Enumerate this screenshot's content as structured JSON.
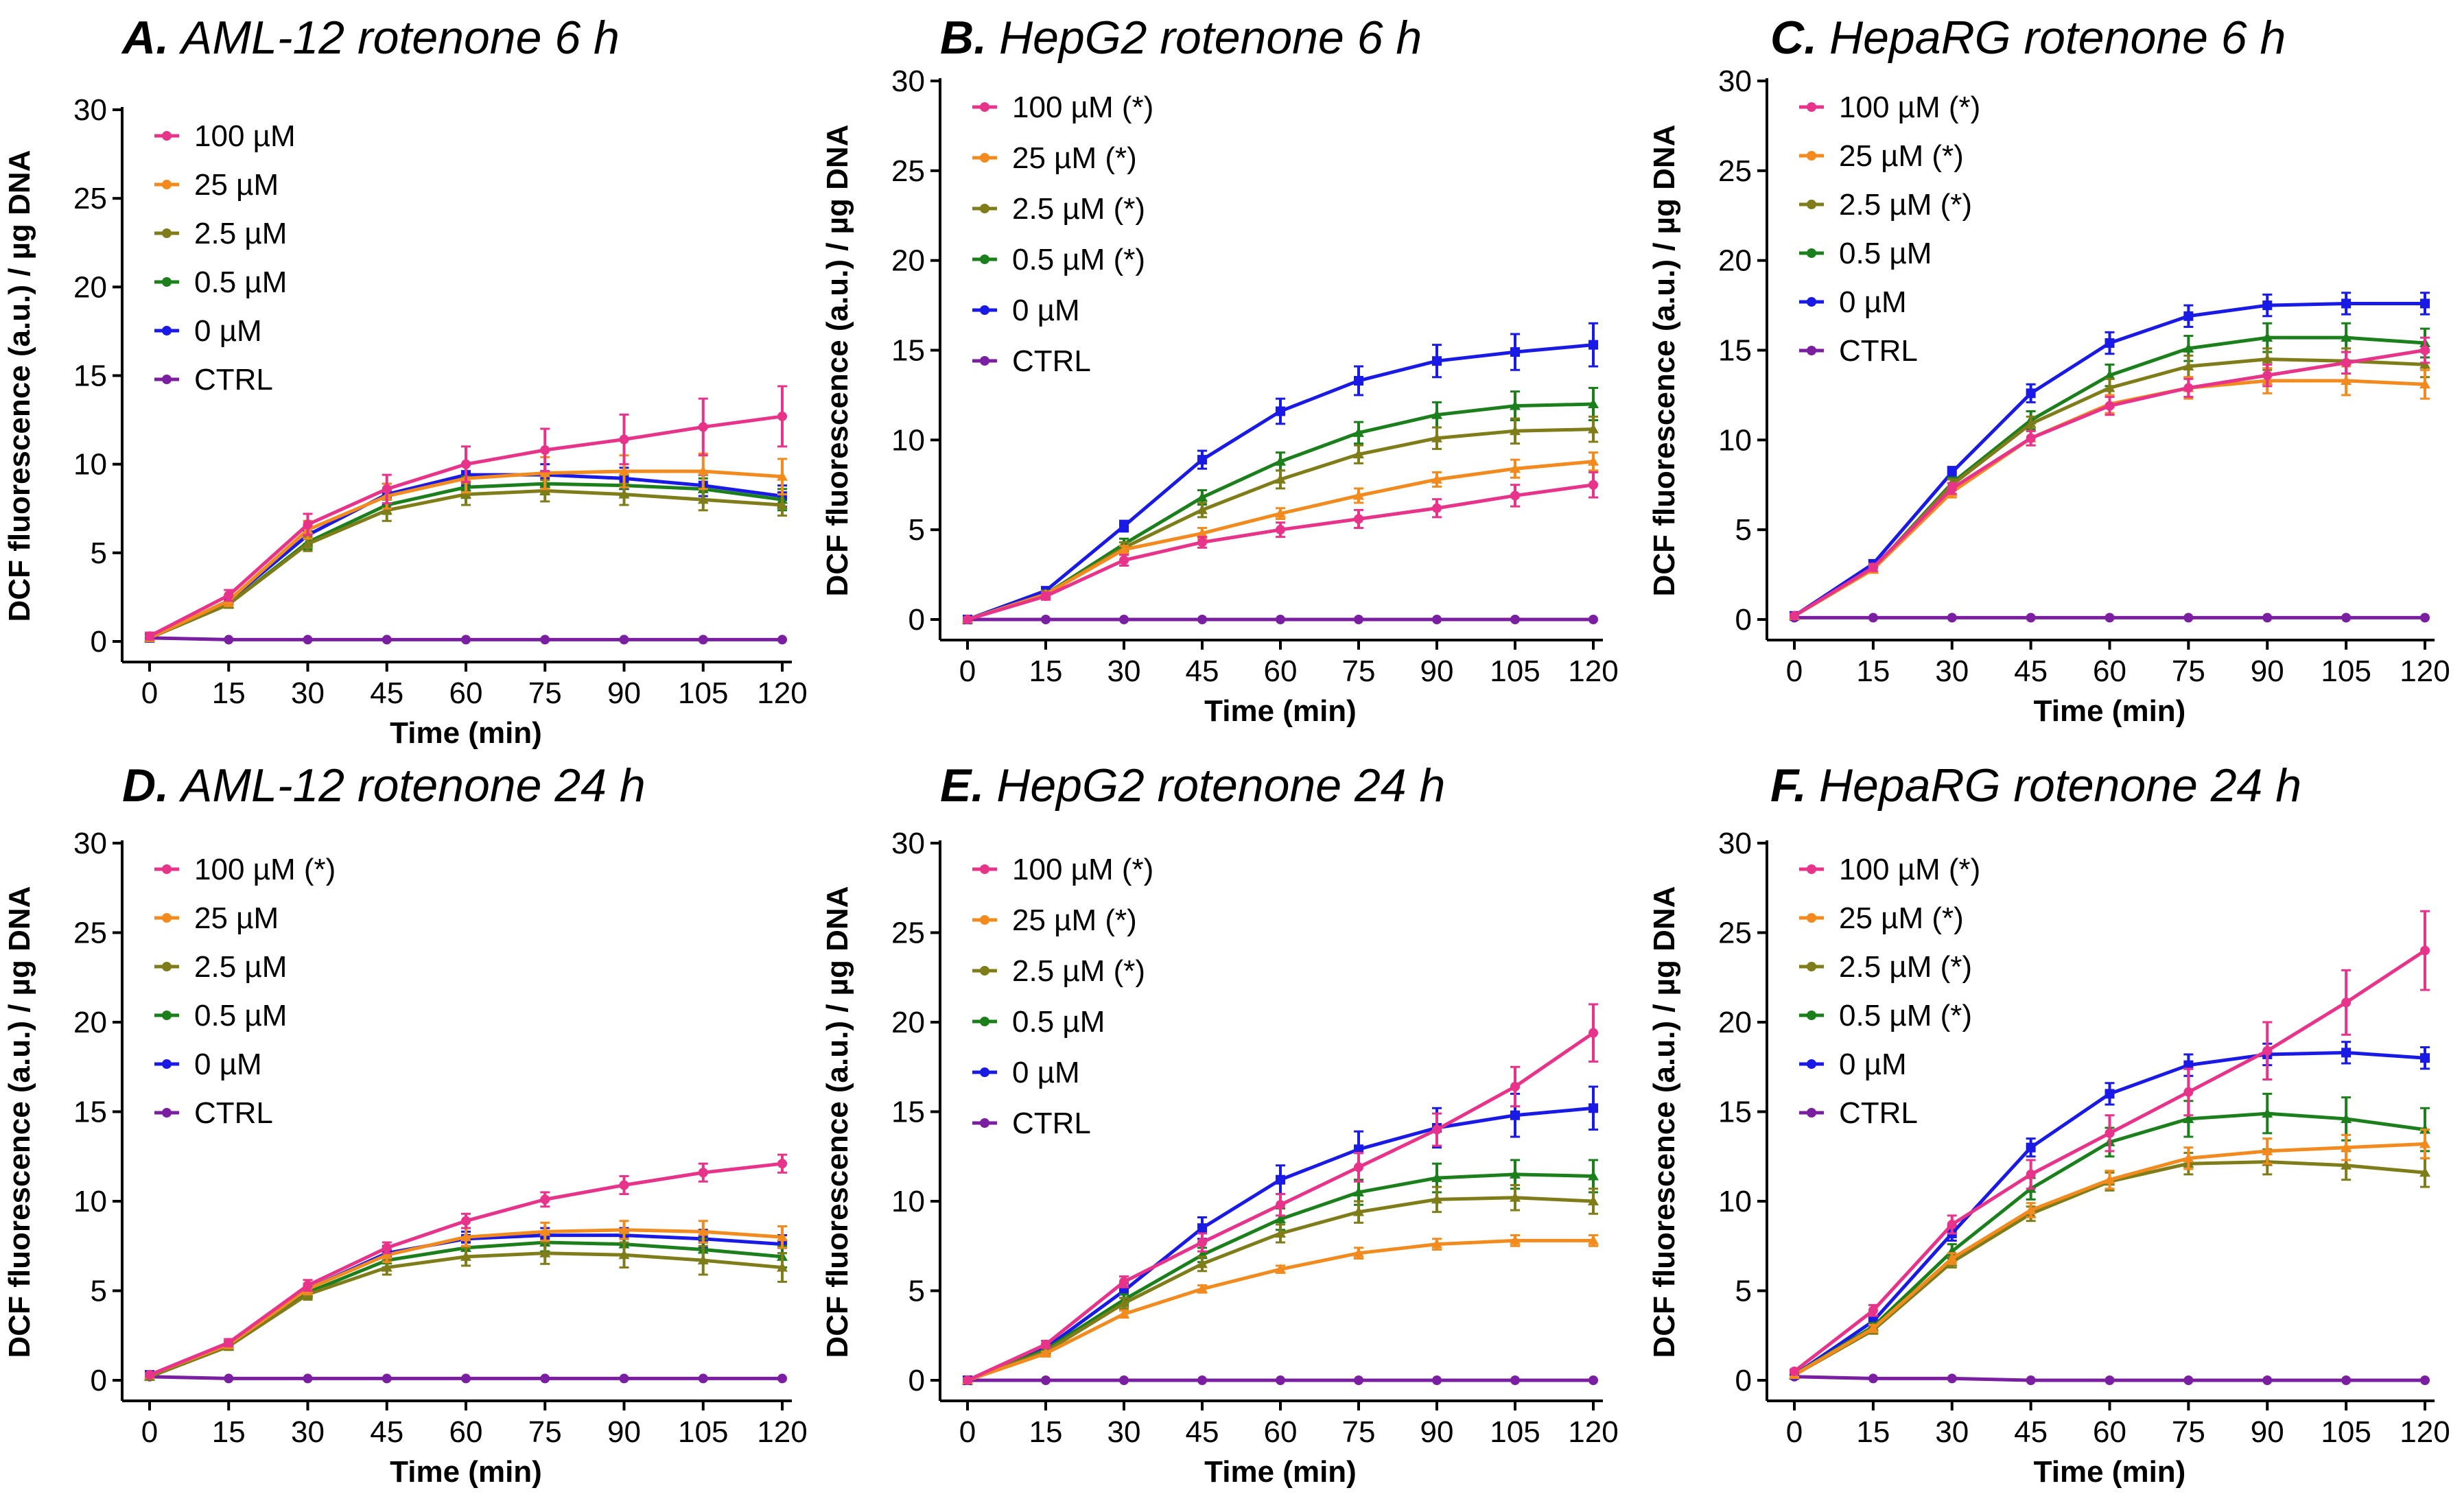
{
  "figure": {
    "panel_count": 6
  },
  "chart_data": [
    {
      "type": "line",
      "panel_letter": "A.",
      "title": "AML-12 rotenone 6 h",
      "xlabel": "Time (min)",
      "ylabel": "DCF fluorescence (a.u.) / µg DNA",
      "x": [
        0,
        15,
        30,
        45,
        60,
        75,
        90,
        105,
        120
      ],
      "xlim": [
        0,
        120
      ],
      "ylim": [
        0,
        30
      ],
      "yticks": [
        0,
        5,
        10,
        15,
        20,
        25,
        30
      ],
      "legend": "top-left",
      "series": [
        {
          "name": "100 µM",
          "color": "#e8338a",
          "values": [
            0.3,
            2.6,
            6.6,
            8.6,
            10.0,
            10.8,
            11.4,
            12.1,
            12.7
          ],
          "errors": [
            0.2,
            0.3,
            0.6,
            0.8,
            1.0,
            1.2,
            1.4,
            1.6,
            1.7
          ]
        },
        {
          "name": "25 µM",
          "color": "#f28a1e",
          "values": [
            0.2,
            2.3,
            6.3,
            8.2,
            9.2,
            9.5,
            9.6,
            9.6,
            9.3
          ],
          "errors": [
            0.1,
            0.3,
            0.5,
            0.7,
            0.8,
            0.9,
            0.9,
            1.0,
            1.0
          ]
        },
        {
          "name": "2.5 µM",
          "color": "#7f7d1a",
          "values": [
            0.2,
            2.1,
            5.5,
            7.4,
            8.3,
            8.5,
            8.3,
            8.0,
            7.7
          ],
          "errors": [
            0.1,
            0.2,
            0.4,
            0.6,
            0.6,
            0.6,
            0.6,
            0.6,
            0.6
          ]
        },
        {
          "name": "0.5 µM",
          "color": "#1b7f1b",
          "values": [
            0.2,
            2.1,
            5.6,
            7.7,
            8.7,
            8.9,
            8.8,
            8.6,
            8.0
          ],
          "errors": [
            0.1,
            0.2,
            0.4,
            0.5,
            0.6,
            0.6,
            0.6,
            0.6,
            0.6
          ]
        },
        {
          "name": "0 µM",
          "color": "#1a1ae6",
          "values": [
            0.2,
            2.3,
            6.0,
            8.3,
            9.4,
            9.4,
            9.2,
            8.8,
            8.2
          ],
          "errors": [
            0.1,
            0.2,
            0.5,
            0.6,
            0.6,
            0.6,
            0.6,
            0.6,
            0.6
          ]
        },
        {
          "name": "CTRL",
          "color": "#7a1fa2",
          "values": [
            0.2,
            0.1,
            0.1,
            0.1,
            0.1,
            0.1,
            0.1,
            0.1,
            0.1
          ],
          "errors": [
            0,
            0,
            0,
            0,
            0,
            0,
            0,
            0,
            0
          ]
        }
      ]
    },
    {
      "type": "line",
      "panel_letter": "B.",
      "title": "HepG2 rotenone 6 h",
      "xlabel": "Time (min)",
      "ylabel": "DCF fluorescence (a.u.) / µg DNA",
      "x": [
        0,
        15,
        30,
        45,
        60,
        75,
        90,
        105,
        120
      ],
      "xlim": [
        0,
        120
      ],
      "ylim": [
        0,
        30
      ],
      "yticks": [
        0,
        5,
        10,
        15,
        20,
        25,
        30
      ],
      "legend": "top-left",
      "series": [
        {
          "name": "100 µM (*)",
          "color": "#e8338a",
          "values": [
            0.0,
            1.3,
            3.3,
            4.3,
            5.0,
            5.6,
            6.2,
            6.9,
            7.5
          ],
          "errors": [
            0.1,
            0.2,
            0.3,
            0.3,
            0.4,
            0.5,
            0.5,
            0.6,
            0.7
          ]
        },
        {
          "name": "25 µM (*)",
          "color": "#f28a1e",
          "values": [
            0.0,
            1.4,
            3.9,
            4.8,
            5.9,
            6.9,
            7.8,
            8.4,
            8.8
          ],
          "errors": [
            0.1,
            0.1,
            0.2,
            0.3,
            0.3,
            0.4,
            0.4,
            0.5,
            0.5
          ]
        },
        {
          "name": "2.5 µM (*)",
          "color": "#7f7d1a",
          "values": [
            0.0,
            1.4,
            4.0,
            6.1,
            7.8,
            9.2,
            10.1,
            10.5,
            10.6
          ],
          "errors": [
            0.1,
            0.2,
            0.3,
            0.4,
            0.5,
            0.5,
            0.6,
            0.7,
            0.7
          ]
        },
        {
          "name": "0.5 µM (*)",
          "color": "#1b7f1b",
          "values": [
            0.0,
            1.4,
            4.2,
            6.8,
            8.8,
            10.4,
            11.4,
            11.9,
            12.0
          ],
          "errors": [
            0.1,
            0.2,
            0.3,
            0.4,
            0.5,
            0.6,
            0.7,
            0.8,
            0.9
          ]
        },
        {
          "name": "0  µM",
          "color": "#1a1ae6",
          "values": [
            0.0,
            1.6,
            5.2,
            8.9,
            11.6,
            13.3,
            14.4,
            14.9,
            15.3
          ],
          "errors": [
            0.1,
            0.2,
            0.3,
            0.5,
            0.7,
            0.8,
            0.9,
            1.0,
            1.2
          ]
        },
        {
          "name": "CTRL",
          "color": "#7a1fa2",
          "values": [
            0.0,
            0.0,
            0.0,
            0.0,
            0.0,
            0.0,
            0.0,
            0.0,
            0.0
          ],
          "errors": [
            0,
            0,
            0,
            0,
            0,
            0,
            0,
            0,
            0
          ]
        }
      ]
    },
    {
      "type": "line",
      "panel_letter": "C.",
      "title": "HepaRG rotenone 6 h",
      "xlabel": "Time (min)",
      "ylabel": "DCF fluorescence (a.u.) / µg DNA",
      "x": [
        0,
        15,
        30,
        45,
        60,
        75,
        90,
        105,
        120
      ],
      "xlim": [
        0,
        120
      ],
      "ylim": [
        0,
        30
      ],
      "yticks": [
        0,
        5,
        10,
        15,
        20,
        25,
        30
      ],
      "legend": "top-left",
      "series": [
        {
          "name": "100 µM (*)",
          "color": "#e8338a",
          "values": [
            0.2,
            2.9,
            7.3,
            10.1,
            11.9,
            12.9,
            13.6,
            14.3,
            15.0
          ],
          "errors": [
            0.1,
            0.2,
            0.3,
            0.4,
            0.5,
            0.5,
            0.6,
            0.6,
            0.7
          ]
        },
        {
          "name": "25 µM (*)",
          "color": "#f28a1e",
          "values": [
            0.2,
            2.8,
            7.1,
            10.1,
            12.0,
            12.9,
            13.3,
            13.3,
            13.1
          ],
          "errors": [
            0.1,
            0.2,
            0.3,
            0.4,
            0.5,
            0.6,
            0.7,
            0.8,
            0.8
          ]
        },
        {
          "name": "2.5 µM (*)",
          "color": "#7f7d1a",
          "values": [
            0.2,
            2.8,
            7.5,
            10.9,
            12.9,
            14.1,
            14.5,
            14.4,
            14.2
          ],
          "errors": [
            0.1,
            0.2,
            0.3,
            0.4,
            0.5,
            0.6,
            0.6,
            0.7,
            0.7
          ]
        },
        {
          "name": "0.5 µM",
          "color": "#1b7f1b",
          "values": [
            0.2,
            2.8,
            7.6,
            11.1,
            13.6,
            15.1,
            15.7,
            15.7,
            15.4
          ],
          "errors": [
            0.1,
            0.2,
            0.3,
            0.5,
            0.6,
            0.7,
            0.8,
            0.8,
            0.8
          ]
        },
        {
          "name": "0  µM",
          "color": "#1a1ae6",
          "values": [
            0.2,
            3.1,
            8.2,
            12.6,
            15.4,
            16.9,
            17.5,
            17.6,
            17.6
          ],
          "errors": [
            0.1,
            0.2,
            0.3,
            0.5,
            0.6,
            0.6,
            0.6,
            0.6,
            0.6
          ]
        },
        {
          "name": "CTRL",
          "color": "#7a1fa2",
          "values": [
            0.1,
            0.1,
            0.1,
            0.1,
            0.1,
            0.1,
            0.1,
            0.1,
            0.1
          ],
          "errors": [
            0,
            0,
            0,
            0,
            0,
            0,
            0,
            0,
            0
          ]
        }
      ]
    },
    {
      "type": "line",
      "panel_letter": "D.",
      "title": "AML-12 rotenone 24 h",
      "xlabel": "Time (min)",
      "ylabel": "DCF fluorescence (a.u.) / µg DNA",
      "x": [
        0,
        15,
        30,
        45,
        60,
        75,
        90,
        105,
        120
      ],
      "xlim": [
        0,
        120
      ],
      "ylim": [
        0,
        30
      ],
      "yticks": [
        0,
        5,
        10,
        15,
        20,
        25,
        30
      ],
      "legend": "top-left",
      "series": [
        {
          "name": "100 µM (*)",
          "color": "#e8338a",
          "values": [
            0.3,
            2.1,
            5.3,
            7.4,
            8.9,
            10.1,
            10.9,
            11.6,
            12.1
          ],
          "errors": [
            0.1,
            0.2,
            0.3,
            0.3,
            0.4,
            0.4,
            0.5,
            0.5,
            0.5
          ]
        },
        {
          "name": "25 µM",
          "color": "#f28a1e",
          "values": [
            0.3,
            2.0,
            5.1,
            7.0,
            8.0,
            8.3,
            8.4,
            8.3,
            8.0
          ],
          "errors": [
            0.1,
            0.2,
            0.3,
            0.4,
            0.5,
            0.5,
            0.5,
            0.6,
            0.6
          ]
        },
        {
          "name": "2.5 µM",
          "color": "#7f7d1a",
          "values": [
            0.2,
            1.9,
            4.8,
            6.3,
            6.9,
            7.1,
            7.0,
            6.7,
            6.3
          ],
          "errors": [
            0.1,
            0.2,
            0.3,
            0.4,
            0.5,
            0.6,
            0.7,
            0.8,
            0.8
          ]
        },
        {
          "name": "0.5 µM",
          "color": "#1b7f1b",
          "values": [
            0.2,
            1.9,
            4.9,
            6.7,
            7.4,
            7.7,
            7.6,
            7.3,
            6.9
          ],
          "errors": [
            0.1,
            0.2,
            0.3,
            0.4,
            0.5,
            0.5,
            0.6,
            0.6,
            0.6
          ]
        },
        {
          "name": "0 µM",
          "color": "#1a1ae6",
          "values": [
            0.3,
            2.0,
            5.1,
            7.1,
            7.9,
            8.1,
            8.1,
            7.9,
            7.6
          ],
          "errors": [
            0.1,
            0.2,
            0.3,
            0.4,
            0.4,
            0.4,
            0.4,
            0.5,
            0.5
          ]
        },
        {
          "name": "CTRL",
          "color": "#7a1fa2",
          "values": [
            0.2,
            0.1,
            0.1,
            0.1,
            0.1,
            0.1,
            0.1,
            0.1,
            0.1
          ],
          "errors": [
            0,
            0,
            0,
            0,
            0,
            0,
            0,
            0,
            0
          ]
        }
      ]
    },
    {
      "type": "line",
      "panel_letter": "E.",
      "title": "HepG2 rotenone 24 h",
      "xlabel": "Time (min)",
      "ylabel": "DCF fluorescence (a.u.) / µg DNA",
      "x": [
        0,
        15,
        30,
        45,
        60,
        75,
        90,
        105,
        120
      ],
      "xlim": [
        0,
        120
      ],
      "ylim": [
        0,
        30
      ],
      "yticks": [
        0,
        5,
        10,
        15,
        20,
        25,
        30
      ],
      "legend": "top-left",
      "series": [
        {
          "name": "100 µM (*)",
          "color": "#e8338a",
          "values": [
            0.0,
            2.0,
            5.5,
            7.7,
            9.8,
            11.9,
            14.0,
            16.4,
            19.4
          ],
          "errors": [
            0.1,
            0.2,
            0.3,
            0.5,
            0.6,
            0.8,
            0.9,
            1.1,
            1.6
          ]
        },
        {
          "name": "25 µM (*)",
          "color": "#f28a1e",
          "values": [
            0.0,
            1.5,
            3.7,
            5.1,
            6.2,
            7.1,
            7.6,
            7.8,
            7.8
          ],
          "errors": [
            0.1,
            0.1,
            0.2,
            0.2,
            0.2,
            0.3,
            0.3,
            0.3,
            0.3
          ]
        },
        {
          "name": "2.5 µM (*)",
          "color": "#7f7d1a",
          "values": [
            0.0,
            1.6,
            4.3,
            6.5,
            8.2,
            9.4,
            10.1,
            10.2,
            10.0
          ],
          "errors": [
            0.1,
            0.2,
            0.3,
            0.4,
            0.5,
            0.6,
            0.7,
            0.7,
            0.7
          ]
        },
        {
          "name": "0.5 µM",
          "color": "#1b7f1b",
          "values": [
            0.0,
            1.7,
            4.5,
            7.0,
            9.0,
            10.5,
            11.3,
            11.5,
            11.4
          ],
          "errors": [
            0.1,
            0.2,
            0.3,
            0.4,
            0.6,
            0.7,
            0.8,
            0.8,
            0.9
          ]
        },
        {
          "name": "0  µM",
          "color": "#1a1ae6",
          "values": [
            0.0,
            1.8,
            5.0,
            8.5,
            11.2,
            12.9,
            14.1,
            14.8,
            15.2
          ],
          "errors": [
            0.1,
            0.2,
            0.4,
            0.6,
            0.8,
            1.0,
            1.1,
            1.2,
            1.2
          ]
        },
        {
          "name": "CTRL",
          "color": "#7a1fa2",
          "values": [
            0.0,
            0.0,
            0.0,
            0.0,
            0.0,
            0.0,
            0.0,
            0.0,
            0.0
          ],
          "errors": [
            0,
            0,
            0,
            0,
            0,
            0,
            0,
            0,
            0
          ]
        }
      ]
    },
    {
      "type": "line",
      "panel_letter": "F.",
      "title": "HepaRG rotenone 24 h",
      "xlabel": "Time (min)",
      "ylabel": "DCF fluorescence (a.u.) / µg DNA",
      "x": [
        0,
        15,
        30,
        45,
        60,
        75,
        90,
        105,
        120
      ],
      "xlim": [
        0,
        120
      ],
      "ylim": [
        0,
        30
      ],
      "yticks": [
        0,
        5,
        10,
        15,
        20,
        25,
        30
      ],
      "legend": "top-left",
      "series": [
        {
          "name": "100 µM (*)",
          "color": "#e8338a",
          "values": [
            0.5,
            3.9,
            8.7,
            11.5,
            13.8,
            16.1,
            18.4,
            21.1,
            24.0
          ],
          "errors": [
            0.1,
            0.3,
            0.5,
            0.8,
            1.0,
            1.3,
            1.6,
            1.8,
            2.2
          ]
        },
        {
          "name": "25 µM (*)",
          "color": "#f28a1e",
          "values": [
            0.3,
            2.9,
            6.8,
            9.5,
            11.2,
            12.4,
            12.8,
            13.0,
            13.2
          ],
          "errors": [
            0.1,
            0.2,
            0.3,
            0.4,
            0.5,
            0.6,
            0.7,
            0.7,
            0.8
          ]
        },
        {
          "name": "2.5 µM (*)",
          "color": "#7f7d1a",
          "values": [
            0.3,
            2.8,
            6.6,
            9.3,
            11.1,
            12.1,
            12.2,
            12.0,
            11.6
          ],
          "errors": [
            0.1,
            0.2,
            0.3,
            0.4,
            0.5,
            0.6,
            0.7,
            0.8,
            0.8
          ]
        },
        {
          "name": "0.5 µM (*)",
          "color": "#1b7f1b",
          "values": [
            0.3,
            3.0,
            7.2,
            10.7,
            13.3,
            14.6,
            14.9,
            14.6,
            14.0
          ],
          "errors": [
            0.1,
            0.2,
            0.4,
            0.6,
            0.8,
            1.0,
            1.1,
            1.2,
            1.2
          ]
        },
        {
          "name": "0 µM",
          "color": "#1a1ae6",
          "values": [
            0.3,
            3.3,
            8.2,
            13.0,
            16.0,
            17.6,
            18.2,
            18.3,
            18.0
          ],
          "errors": [
            0.1,
            0.2,
            0.4,
            0.5,
            0.6,
            0.6,
            0.6,
            0.6,
            0.6
          ]
        },
        {
          "name": "CTRL",
          "color": "#7a1fa2",
          "values": [
            0.2,
            0.1,
            0.1,
            0.0,
            0.0,
            0.0,
            0.0,
            0.0,
            0.0
          ],
          "errors": [
            0,
            0,
            0,
            0,
            0,
            0,
            0,
            0,
            0
          ]
        }
      ]
    }
  ]
}
